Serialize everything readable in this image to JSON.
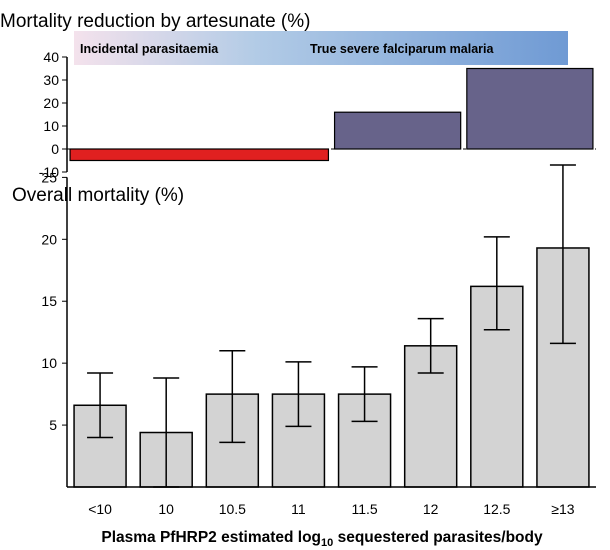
{
  "chart_data": [
    {
      "type": "bar",
      "title": "Mortality reduction by artesunate (%)",
      "ylim": [
        -10,
        40
      ],
      "yticks": [
        40,
        30,
        20,
        10,
        0,
        -10
      ],
      "reference_line": 0,
      "bands": [
        {
          "label": "Incidental parasitaemia",
          "from": "#f4e2ec",
          "to": "#b2cbe6"
        },
        {
          "label": "True severe falciparum malaria",
          "from": "#b2cbe6",
          "to": "#6f9ad4"
        }
      ],
      "bars": [
        {
          "span": [
            "<10",
            "11"
          ],
          "value": -5,
          "color": "#e02020"
        },
        {
          "span": [
            "11.5",
            "12"
          ],
          "value": 16,
          "color": "#67638a"
        },
        {
          "span": [
            "12.5",
            "≥13"
          ],
          "value": 35,
          "color": "#67638a"
        }
      ]
    },
    {
      "type": "bar",
      "title": "Overall mortality (%)",
      "xlabel": "Plasma PfHRP2 estimated log",
      "xlabel_sub": "10",
      "xlabel_rest": " sequestered  parasites/body",
      "ylim": [
        0,
        26
      ],
      "yticks": [
        25,
        20,
        15,
        10,
        5
      ],
      "categories": [
        "<10",
        "10",
        "10.5",
        "11",
        "11.5",
        "12",
        "12.5",
        "≥13"
      ],
      "values": [
        6.6,
        4.4,
        7.5,
        7.5,
        7.5,
        11.4,
        16.2,
        19.3
      ],
      "error_low": [
        4.0,
        0.0,
        3.6,
        4.9,
        5.3,
        9.2,
        12.7,
        11.6
      ],
      "error_high": [
        9.2,
        8.8,
        11.0,
        10.1,
        9.7,
        13.6,
        20.2,
        26.0
      ],
      "bar_color": "#d3d3d3"
    }
  ]
}
